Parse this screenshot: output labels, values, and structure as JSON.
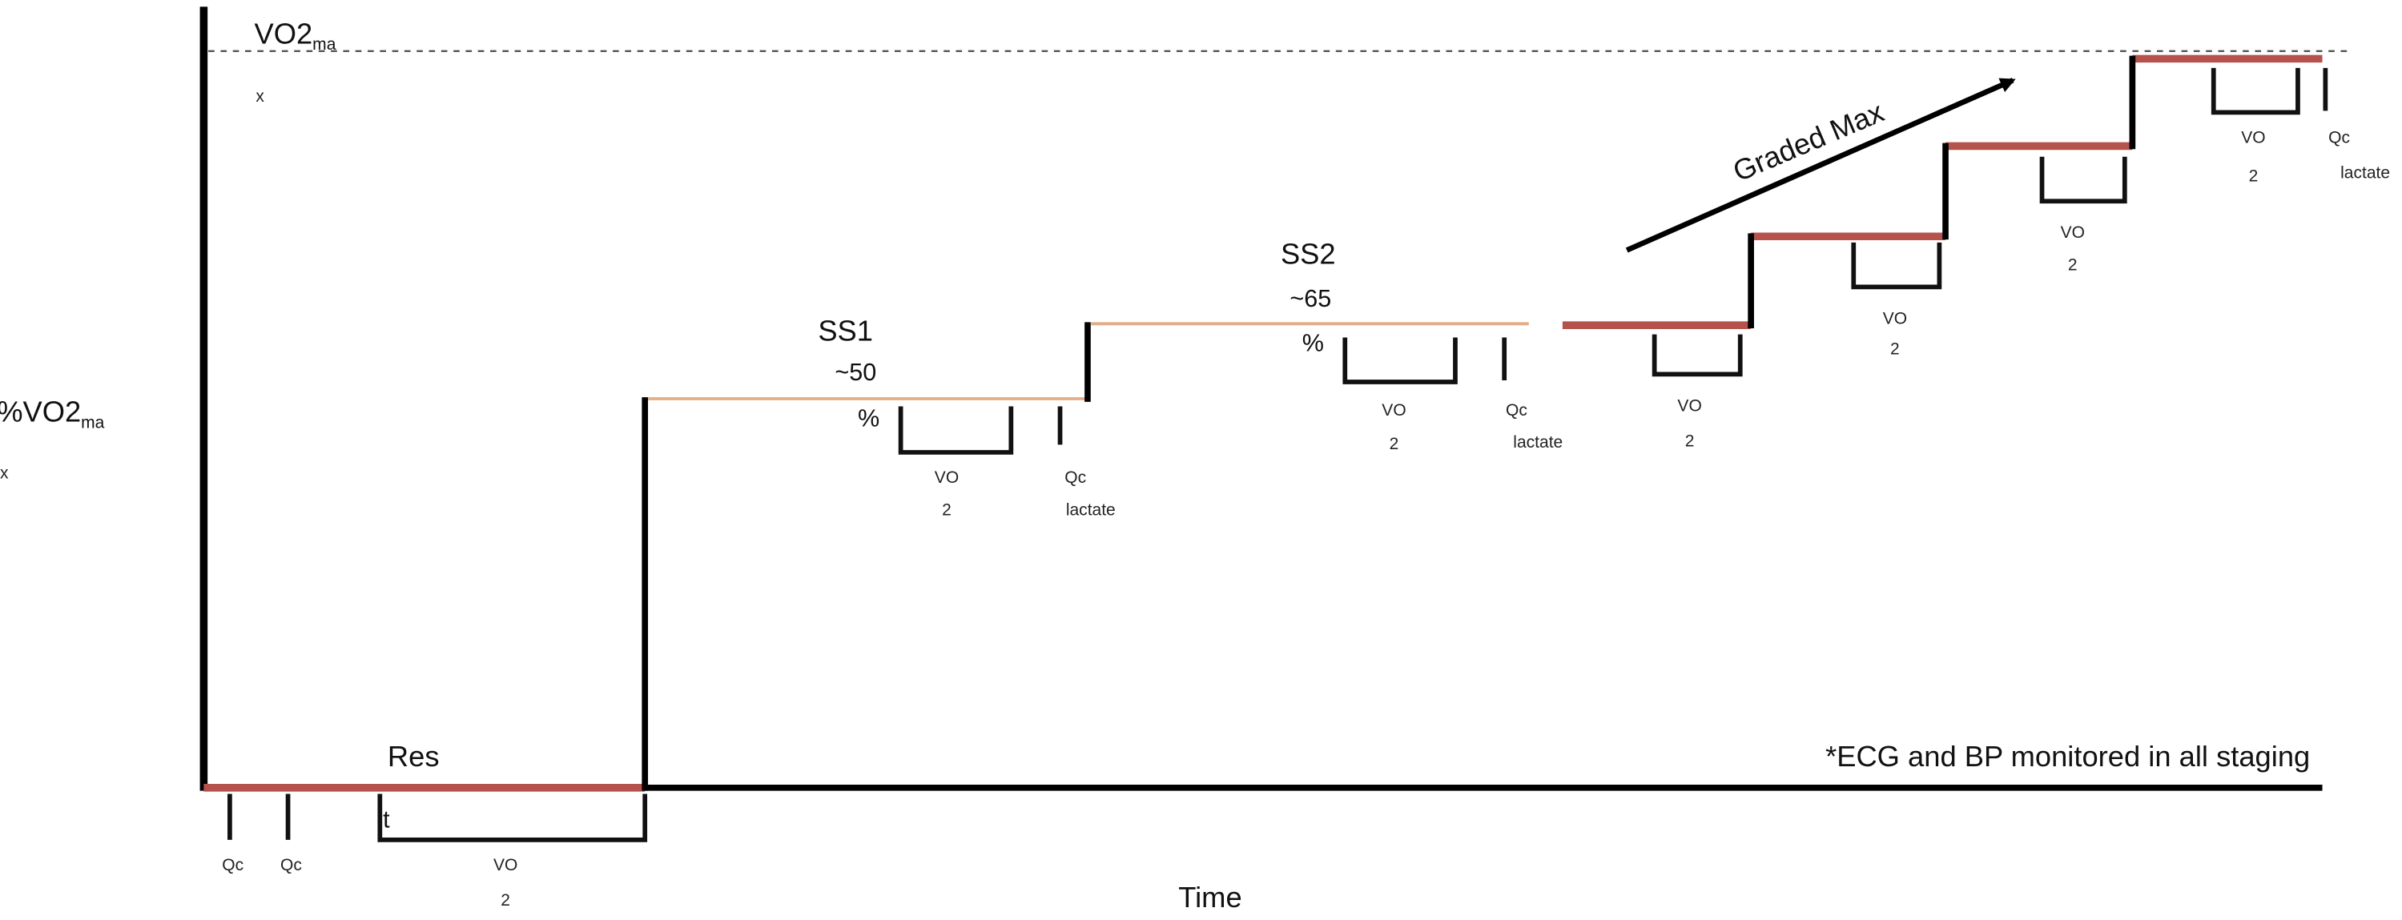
{
  "y_axis_label": {
    "text": "%VO2",
    "subscript": "ma",
    "overflow": "x"
  },
  "x_axis_label": "Time",
  "max_line_label": {
    "text": "VO2",
    "subscript": "ma",
    "overflow": "x"
  },
  "stages": [
    {
      "label": "Res",
      "overflow": "t"
    },
    {
      "label": "SS1",
      "intensity": "~50",
      "unit": "%"
    },
    {
      "label": "SS2",
      "intensity": "~65",
      "unit": "%"
    },
    {
      "label": "Graded Max"
    }
  ],
  "measurements": [
    {
      "line1": "Qc"
    },
    {
      "line1": "Qc"
    },
    {
      "line1": "VO",
      "line2": "2"
    },
    {
      "line1": "VO",
      "line2": "2"
    },
    {
      "line1": "Qc",
      "line2": "lactate"
    },
    {
      "line1": "VO",
      "line2": "2"
    },
    {
      "line1": "Qc",
      "line2": "lactate"
    },
    {
      "line1": "VO",
      "line2": "2"
    },
    {
      "line1": "VO",
      "line2": "2"
    },
    {
      "line1": "VO",
      "line2": "2"
    },
    {
      "line1": "VO",
      "line2": "2"
    },
    {
      "line1": "Qc",
      "line2": "lactate"
    }
  ],
  "note": "*ECG and BP monitored in all staging"
}
